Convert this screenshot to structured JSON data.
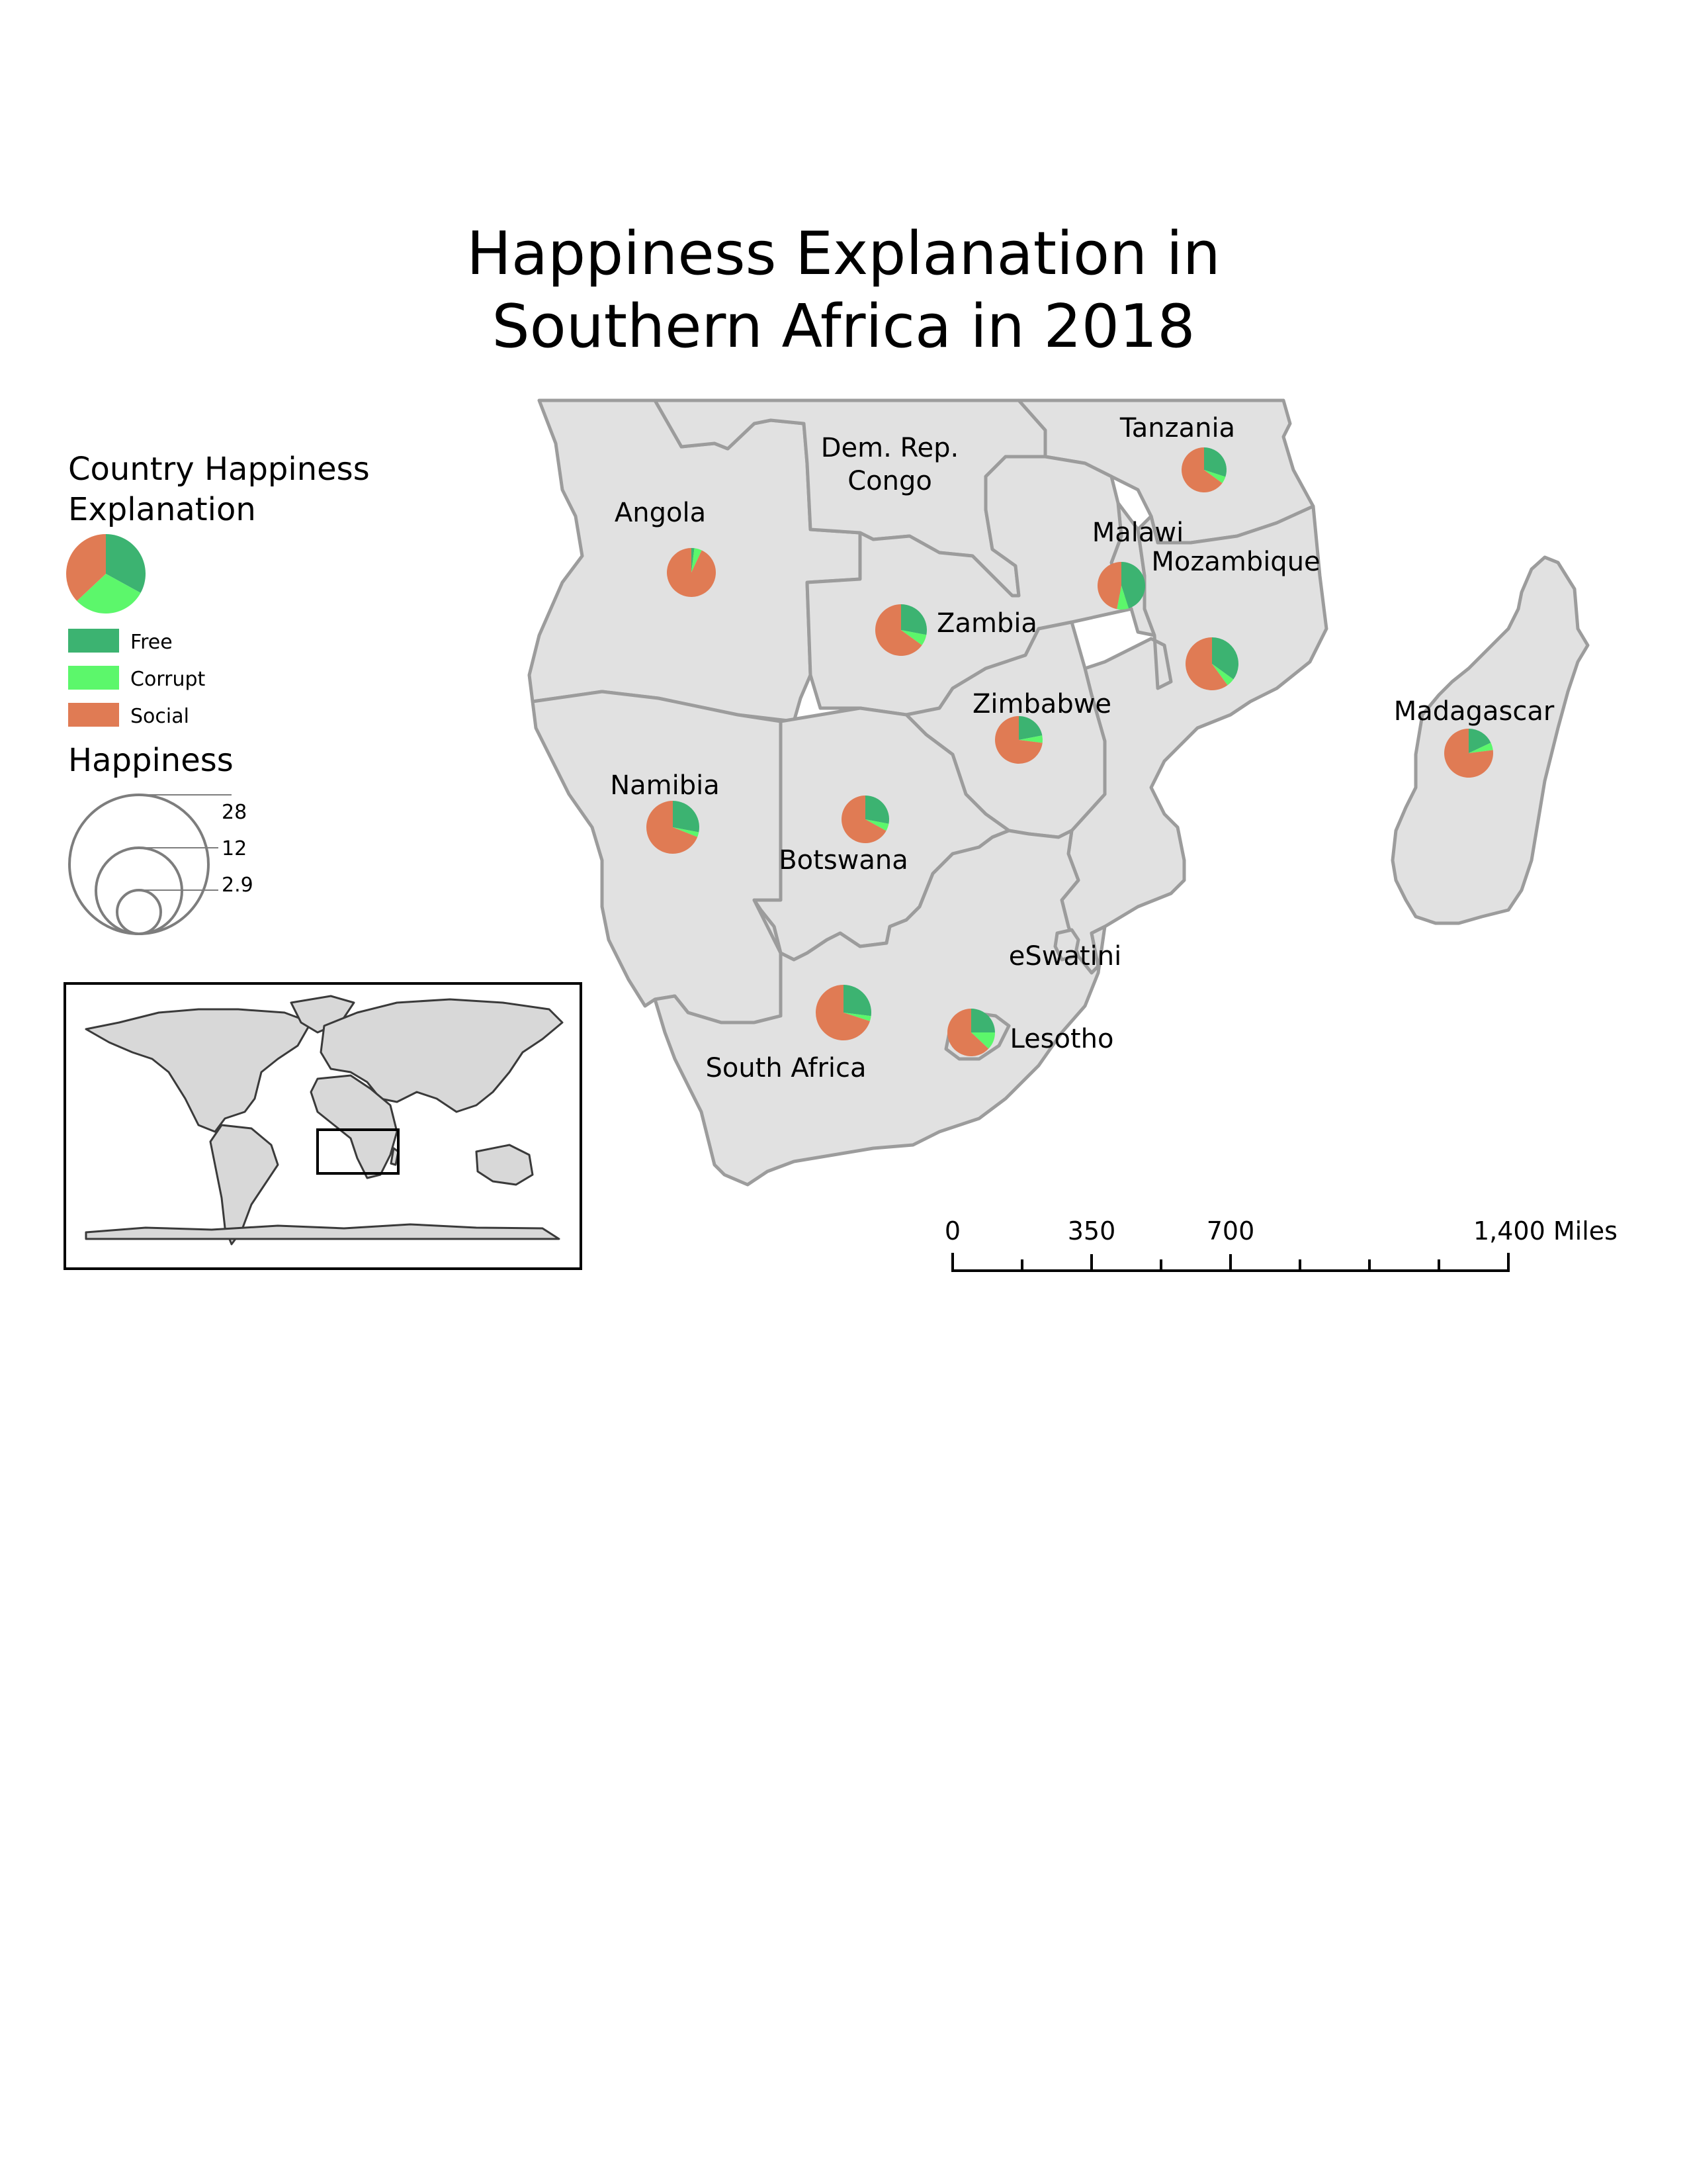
{
  "title": {
    "line1": "Happiness Explanation in",
    "line2": "Southern Africa in 2018"
  },
  "legend": {
    "heading_line1": "Country Happiness",
    "heading_line2": "Explanation",
    "categories": [
      {
        "name": "Free",
        "color": "#3cb371"
      },
      {
        "name": "Corrupt",
        "color": "#5cf76b"
      },
      {
        "name": "Social",
        "color": "#e07b54"
      }
    ],
    "sample_pie": [
      0.33,
      0.3,
      0.37
    ],
    "size_heading": "Happiness",
    "size_values": [
      "28",
      "12",
      "2.9"
    ]
  },
  "countries": [
    "Dem. Rep.",
    "Congo",
    "Angola",
    "Tanzania",
    "Malawi",
    "Mozambique",
    "Zambia",
    "Zimbabwe",
    "Madagascar",
    "Namibia",
    "Botswana",
    "eSwatini",
    "Lesotho",
    "South Africa"
  ],
  "pies": [
    {
      "country": "Tanzania",
      "values": [
        0.3,
        0.05,
        0.65
      ]
    },
    {
      "country": "Angola",
      "values": [
        0.02,
        0.05,
        0.93
      ]
    },
    {
      "country": "Malawi",
      "values": [
        0.45,
        0.08,
        0.47
      ]
    },
    {
      "country": "Zambia",
      "values": [
        0.28,
        0.07,
        0.65
      ]
    },
    {
      "country": "Mozambique",
      "values": [
        0.35,
        0.05,
        0.6
      ]
    },
    {
      "country": "Zimbabwe",
      "values": [
        0.22,
        0.05,
        0.73
      ]
    },
    {
      "country": "Madagascar",
      "values": [
        0.18,
        0.05,
        0.77
      ]
    },
    {
      "country": "Namibia",
      "values": [
        0.28,
        0.03,
        0.69
      ]
    },
    {
      "country": "Botswana",
      "values": [
        0.28,
        0.05,
        0.67
      ]
    },
    {
      "country": "South Africa",
      "values": [
        0.27,
        0.03,
        0.7
      ]
    },
    {
      "country": "Lesotho",
      "values": [
        0.25,
        0.12,
        0.63
      ]
    }
  ],
  "scalebar": {
    "ticks": [
      "0",
      "350",
      "700",
      "1,400 Miles"
    ]
  }
}
